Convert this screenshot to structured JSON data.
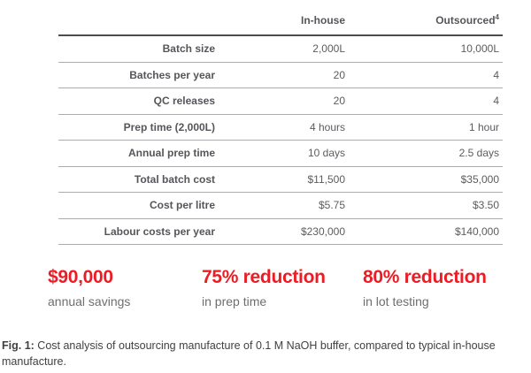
{
  "colors": {
    "accent_red": "#ed1c24",
    "table_text": "#55565a",
    "muted_text": "#6d6e71",
    "caption_text": "#414042",
    "rule_dark": "#4c4d4f",
    "rule_light": "#aaacaf"
  },
  "table": {
    "columns": [
      {
        "label": "In-house",
        "sup": ""
      },
      {
        "label": "Outsourced",
        "sup": "4"
      }
    ],
    "rows": [
      {
        "label": "Batch size",
        "inhouse": "2,000L",
        "outsourced": "10,000L"
      },
      {
        "label": "Batches per year",
        "inhouse": "20",
        "outsourced": "4"
      },
      {
        "label": "QC releases",
        "inhouse": "20",
        "outsourced": "4"
      },
      {
        "label": "Prep time (2,000L)",
        "inhouse": "4 hours",
        "outsourced": "1 hour"
      },
      {
        "label": "Annual prep time",
        "inhouse": "10 days",
        "outsourced": "2.5 days"
      },
      {
        "label": "Total batch cost",
        "inhouse": "$11,500",
        "outsourced": "$35,000"
      },
      {
        "label": "Cost per litre",
        "inhouse": "$5.75",
        "outsourced": "$3.50"
      },
      {
        "label": "Labour costs per year",
        "inhouse": "$230,000",
        "outsourced": "$140,000"
      }
    ]
  },
  "highlights": [
    {
      "value": "$90,000",
      "caption": "annual savings"
    },
    {
      "value": "75% reduction",
      "caption": "in prep time"
    },
    {
      "value": "80% reduction",
      "caption": "in lot testing"
    }
  ],
  "figure_caption": {
    "prefix": "Fig. 1:",
    "text": "Cost analysis of outsourcing manufacture of 0.1 M NaOH buffer, compared to typical in-house manufacture."
  },
  "chart_data": {
    "type": "table",
    "title": "Cost analysis of outsourcing manufacture of 0.1 M NaOH buffer",
    "columns": [
      "",
      "In-house",
      "Outsourced"
    ],
    "rows": [
      [
        "Batch size",
        "2,000L",
        "10,000L"
      ],
      [
        "Batches per year",
        "20",
        "4"
      ],
      [
        "QC releases",
        "20",
        "4"
      ],
      [
        "Prep time (2,000L)",
        "4 hours",
        "1 hour"
      ],
      [
        "Annual prep time",
        "10 days",
        "2.5 days"
      ],
      [
        "Total batch cost",
        "$11,500",
        "$35,000"
      ],
      [
        "Cost per litre",
        "$5.75",
        "$3.50"
      ],
      [
        "Labour costs per year",
        "$230,000",
        "$140,000"
      ]
    ],
    "annotations": [
      "$90,000 annual savings",
      "75% reduction in prep time",
      "80% reduction in lot testing"
    ]
  }
}
